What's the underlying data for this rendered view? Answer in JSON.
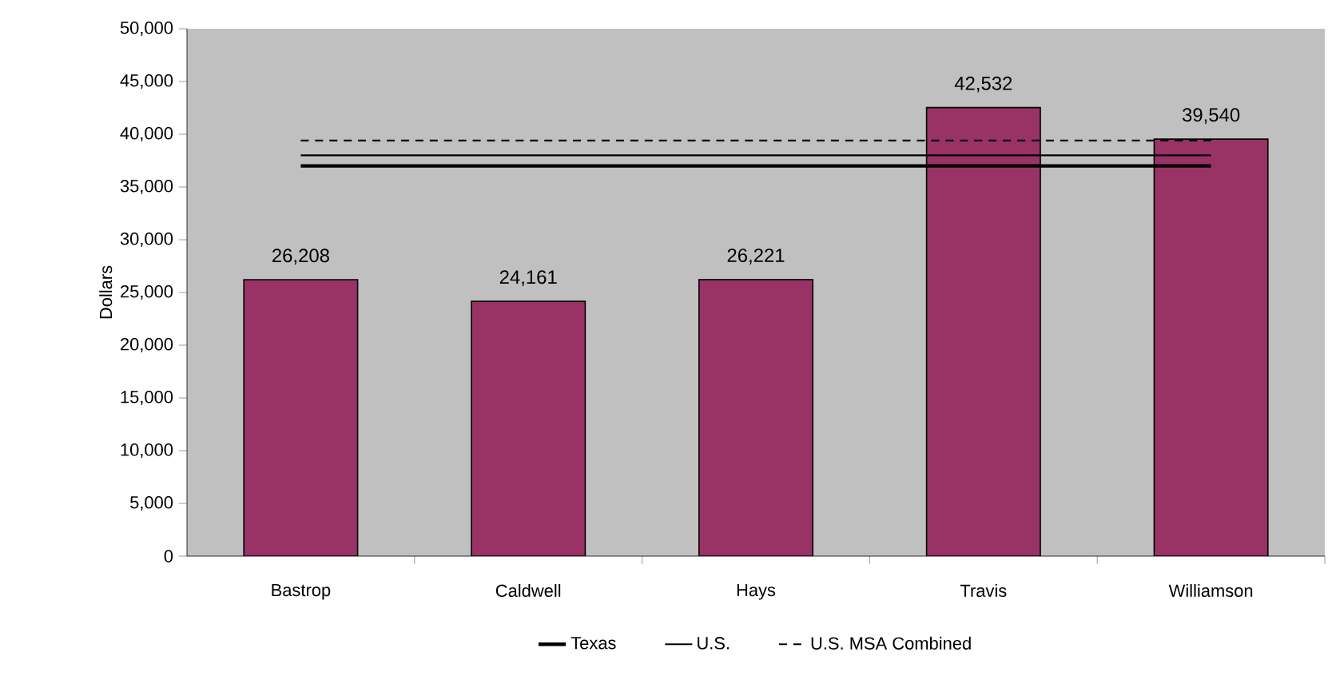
{
  "chart_data": {
    "type": "bar",
    "ylabel": "Dollars",
    "categories": [
      "Bastrop",
      "Caldwell",
      "Hays",
      "Travis",
      "Williamson"
    ],
    "series": [
      {
        "color": "#993366",
        "values": [
          26208,
          24161,
          26221,
          42532,
          39540
        ],
        "value_labels": [
          "26,208",
          "24,161",
          "26,221",
          "42,532",
          "39,540"
        ]
      },
      {
        "type": "line",
        "name": "Texas",
        "color": "#000000",
        "line_style": "solid",
        "values": [
          37000,
          37000,
          37000,
          37000,
          37000
        ]
      },
      {
        "type": "line",
        "name": "U.S.",
        "color": "#000000",
        "line_style": "solid",
        "values": [
          38000,
          38000,
          38000,
          38000,
          38000
        ]
      },
      {
        "type": "line",
        "name": "U.S. MSA Combined",
        "color": "#000000",
        "line_style": "dashed",
        "values": [
          39400,
          39400,
          39400,
          39400,
          39400
        ]
      }
    ],
    "ylim": [
      0,
      50000
    ],
    "yticks": [
      0,
      {
        "value": 5000,
        "label": "5,000"
      },
      {
        "value": 10000,
        "label": "10,000"
      },
      {
        "value": 15000,
        "label": "15,000"
      },
      {
        "value": 20000,
        "label": "20,000"
      },
      {
        "value": 25000,
        "label": "25,000"
      },
      {
        "value": 30000,
        "label": "30,000"
      },
      {
        "value": 35000,
        "label": "35,000"
      },
      {
        "value": 40000,
        "label": "40,000"
      },
      {
        "value": 45000,
        "label": "45,000"
      },
      {
        "value": 50000,
        "label": "50,000"
      }
    ],
    "legend": "bottom",
    "grid": false
  }
}
